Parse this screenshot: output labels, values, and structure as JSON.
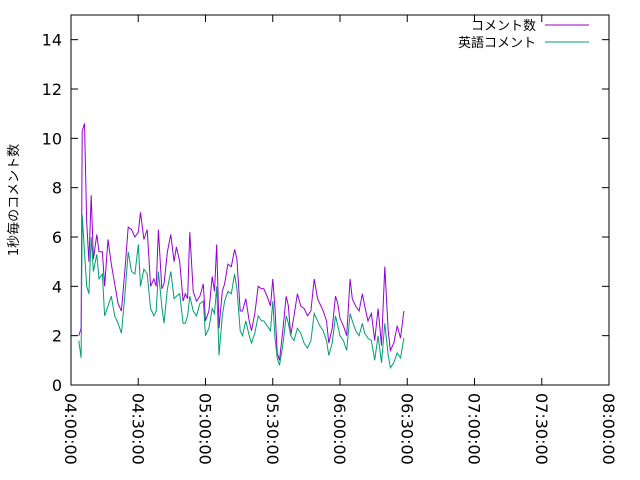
{
  "chart_data": {
    "type": "line",
    "title": "",
    "xlabel": "",
    "ylabel": "1秒毎のコメント数",
    "xlim": [
      "04:00:00",
      "08:00:00"
    ],
    "ylim": [
      0,
      15
    ],
    "x_ticks": [
      "04:00:00",
      "04:30:00",
      "05:00:00",
      "05:30:00",
      "06:00:00",
      "06:30:00",
      "07:00:00",
      "07:30:00",
      "08:00:00"
    ],
    "y_ticks": [
      0,
      2,
      4,
      6,
      8,
      10,
      12,
      14
    ],
    "legend_position": "top-right",
    "grid": false,
    "series": [
      {
        "name": "コメント数",
        "color": "#9400d3",
        "points": [
          [
            "04:03:30",
            2.0
          ],
          [
            "04:04:30",
            2.3
          ],
          [
            "04:05:00",
            10.3
          ],
          [
            "04:06:00",
            10.6
          ],
          [
            "04:07:00",
            6.6
          ],
          [
            "04:08:00",
            5.0
          ],
          [
            "04:09:00",
            7.7
          ],
          [
            "04:10:00",
            5.1
          ],
          [
            "04:11:30",
            6.1
          ],
          [
            "04:12:30",
            5.4
          ],
          [
            "04:14:00",
            5.4
          ],
          [
            "04:15:00",
            4.0
          ],
          [
            "04:16:30",
            5.9
          ],
          [
            "04:18:00",
            4.9
          ],
          [
            "04:19:30",
            4.1
          ],
          [
            "04:21:00",
            3.3
          ],
          [
            "04:22:30",
            3.0
          ],
          [
            "04:24:00",
            4.6
          ],
          [
            "04:25:30",
            6.4
          ],
          [
            "04:27:00",
            6.3
          ],
          [
            "04:28:30",
            6.0
          ],
          [
            "04:30:00",
            6.2
          ],
          [
            "04:31:00",
            7.0
          ],
          [
            "04:32:30",
            5.9
          ],
          [
            "04:34:00",
            6.3
          ],
          [
            "04:35:30",
            4.0
          ],
          [
            "04:37:00",
            4.3
          ],
          [
            "04:38:00",
            4.0
          ],
          [
            "04:39:00",
            6.3
          ],
          [
            "04:40:30",
            3.9
          ],
          [
            "04:41:30",
            4.1
          ],
          [
            "04:43:00",
            5.4
          ],
          [
            "04:44:30",
            6.1
          ],
          [
            "04:46:00",
            5.0
          ],
          [
            "04:47:00",
            5.6
          ],
          [
            "04:48:30",
            5.0
          ],
          [
            "04:50:00",
            3.4
          ],
          [
            "04:51:00",
            3.7
          ],
          [
            "04:52:00",
            3.5
          ],
          [
            "04:53:00",
            6.2
          ],
          [
            "04:54:30",
            3.8
          ],
          [
            "04:56:00",
            3.4
          ],
          [
            "04:57:30",
            3.6
          ],
          [
            "04:59:00",
            4.1
          ],
          [
            "05:00:00",
            2.6
          ],
          [
            "05:01:30",
            3.0
          ],
          [
            "05:03:00",
            4.4
          ],
          [
            "05:04:00",
            3.8
          ],
          [
            "05:05:00",
            5.7
          ],
          [
            "05:06:00",
            2.3
          ],
          [
            "05:07:30",
            3.8
          ],
          [
            "05:08:30",
            4.1
          ],
          [
            "05:10:00",
            4.9
          ],
          [
            "05:11:30",
            4.8
          ],
          [
            "05:13:00",
            5.5
          ],
          [
            "05:14:00",
            5.1
          ],
          [
            "05:15:30",
            3.0
          ],
          [
            "05:16:30",
            3.0
          ],
          [
            "05:18:00",
            3.5
          ],
          [
            "05:19:30",
            2.6
          ],
          [
            "05:20:30",
            2.2
          ],
          [
            "05:22:00",
            2.9
          ],
          [
            "05:23:30",
            4.0
          ],
          [
            "05:25:00",
            3.9
          ],
          [
            "05:26:00",
            3.9
          ],
          [
            "05:27:30",
            3.6
          ],
          [
            "05:29:00",
            3.2
          ],
          [
            "05:30:00",
            4.3
          ],
          [
            "05:31:00",
            3.1
          ],
          [
            "05:32:00",
            1.3
          ],
          [
            "05:33:00",
            1.0
          ],
          [
            "05:34:30",
            2.2
          ],
          [
            "05:36:00",
            3.6
          ],
          [
            "05:37:00",
            3.2
          ],
          [
            "05:38:00",
            2.0
          ],
          [
            "05:39:30",
            2.8
          ],
          [
            "05:41:00",
            3.7
          ],
          [
            "05:42:30",
            3.2
          ],
          [
            "05:44:00",
            3.1
          ],
          [
            "05:45:30",
            2.8
          ],
          [
            "05:47:00",
            3.0
          ],
          [
            "05:48:30",
            4.3
          ],
          [
            "05:50:00",
            3.5
          ],
          [
            "05:51:00",
            3.3
          ],
          [
            "05:52:30",
            3.0
          ],
          [
            "05:54:00",
            2.6
          ],
          [
            "05:55:00",
            1.7
          ],
          [
            "05:56:30",
            2.3
          ],
          [
            "05:58:00",
            3.6
          ],
          [
            "05:59:00",
            3.3
          ],
          [
            "06:00:00",
            2.7
          ],
          [
            "06:01:30",
            2.4
          ],
          [
            "06:03:00",
            2.0
          ],
          [
            "06:04:30",
            4.3
          ],
          [
            "06:05:30",
            3.5
          ],
          [
            "06:07:00",
            3.2
          ],
          [
            "06:08:30",
            3.0
          ],
          [
            "06:10:00",
            3.7
          ],
          [
            "06:11:00",
            3.2
          ],
          [
            "06:12:30",
            2.6
          ],
          [
            "06:14:00",
            2.9
          ],
          [
            "06:15:30",
            1.8
          ],
          [
            "06:17:00",
            3.1
          ],
          [
            "06:18:30",
            1.6
          ],
          [
            "06:20:00",
            4.8
          ],
          [
            "06:21:30",
            2.2
          ],
          [
            "06:22:30",
            1.4
          ],
          [
            "06:24:00",
            1.7
          ],
          [
            "06:25:30",
            2.4
          ],
          [
            "06:27:00",
            1.9
          ],
          [
            "06:28:30",
            3.0
          ]
        ]
      },
      {
        "name": "英語コメント",
        "color": "#009e73",
        "points": [
          [
            "04:03:30",
            1.8
          ],
          [
            "04:04:30",
            1.1
          ],
          [
            "04:05:00",
            6.9
          ],
          [
            "04:06:00",
            5.4
          ],
          [
            "04:07:00",
            4.0
          ],
          [
            "04:08:00",
            3.7
          ],
          [
            "04:09:00",
            6.0
          ],
          [
            "04:10:00",
            4.6
          ],
          [
            "04:11:30",
            5.3
          ],
          [
            "04:12:30",
            4.3
          ],
          [
            "04:14:00",
            4.5
          ],
          [
            "04:15:00",
            2.8
          ],
          [
            "04:16:30",
            3.2
          ],
          [
            "04:18:00",
            3.6
          ],
          [
            "04:19:30",
            2.8
          ],
          [
            "04:21:00",
            2.5
          ],
          [
            "04:22:30",
            2.1
          ],
          [
            "04:24:00",
            3.6
          ],
          [
            "04:25:30",
            5.4
          ],
          [
            "04:27:00",
            4.6
          ],
          [
            "04:28:30",
            4.5
          ],
          [
            "04:30:00",
            5.7
          ],
          [
            "04:31:00",
            4.0
          ],
          [
            "04:32:30",
            4.7
          ],
          [
            "04:34:00",
            4.5
          ],
          [
            "04:35:30",
            3.1
          ],
          [
            "04:37:00",
            2.8
          ],
          [
            "04:38:00",
            3.0
          ],
          [
            "04:39:00",
            4.6
          ],
          [
            "04:40:30",
            3.2
          ],
          [
            "04:41:30",
            2.5
          ],
          [
            "04:43:00",
            3.9
          ],
          [
            "04:44:30",
            4.6
          ],
          [
            "04:46:00",
            3.5
          ],
          [
            "04:47:00",
            3.6
          ],
          [
            "04:48:30",
            3.7
          ],
          [
            "04:50:00",
            2.5
          ],
          [
            "04:51:00",
            2.5
          ],
          [
            "04:52:00",
            2.8
          ],
          [
            "04:53:00",
            3.6
          ],
          [
            "04:54:30",
            3.0
          ],
          [
            "04:56:00",
            2.8
          ],
          [
            "04:57:30",
            3.3
          ],
          [
            "04:59:00",
            3.4
          ],
          [
            "05:00:00",
            2.0
          ],
          [
            "05:01:30",
            2.3
          ],
          [
            "05:03:00",
            3.1
          ],
          [
            "05:04:00",
            2.9
          ],
          [
            "05:05:00",
            4.0
          ],
          [
            "05:06:00",
            1.2
          ],
          [
            "05:07:30",
            2.8
          ],
          [
            "05:08:30",
            3.4
          ],
          [
            "05:10:00",
            3.8
          ],
          [
            "05:11:30",
            3.7
          ],
          [
            "05:13:00",
            4.5
          ],
          [
            "05:14:00",
            3.9
          ],
          [
            "05:15:30",
            2.2
          ],
          [
            "05:16:30",
            2.0
          ],
          [
            "05:18:00",
            2.6
          ],
          [
            "05:19:30",
            2.0
          ],
          [
            "05:20:30",
            1.7
          ],
          [
            "05:22:00",
            2.1
          ],
          [
            "05:23:30",
            2.8
          ],
          [
            "05:25:00",
            2.6
          ],
          [
            "05:26:00",
            2.6
          ],
          [
            "05:27:30",
            2.4
          ],
          [
            "05:29:00",
            2.2
          ],
          [
            "05:30:00",
            3.4
          ],
          [
            "05:31:00",
            1.9
          ],
          [
            "05:32:00",
            1.1
          ],
          [
            "05:33:00",
            0.8
          ],
          [
            "05:34:30",
            1.6
          ],
          [
            "05:36:00",
            2.8
          ],
          [
            "05:37:00",
            2.5
          ],
          [
            "05:38:00",
            2.0
          ],
          [
            "05:39:30",
            1.8
          ],
          [
            "05:41:00",
            2.3
          ],
          [
            "05:42:30",
            2.1
          ],
          [
            "05:44:00",
            1.7
          ],
          [
            "05:45:30",
            1.5
          ],
          [
            "05:47:00",
            1.8
          ],
          [
            "05:48:30",
            2.9
          ],
          [
            "05:50:00",
            2.6
          ],
          [
            "05:51:00",
            2.4
          ],
          [
            "05:52:30",
            2.2
          ],
          [
            "05:54:00",
            1.8
          ],
          [
            "05:55:00",
            1.2
          ],
          [
            "05:56:30",
            1.7
          ],
          [
            "05:58:00",
            2.8
          ],
          [
            "05:59:00",
            2.4
          ],
          [
            "06:00:00",
            2.0
          ],
          [
            "06:01:30",
            1.8
          ],
          [
            "06:03:00",
            1.4
          ],
          [
            "06:04:30",
            2.9
          ],
          [
            "06:05:30",
            2.6
          ],
          [
            "06:07:00",
            2.2
          ],
          [
            "06:08:30",
            2.0
          ],
          [
            "06:10:00",
            2.5
          ],
          [
            "06:11:00",
            2.1
          ],
          [
            "06:12:30",
            1.9
          ],
          [
            "06:14:00",
            1.8
          ],
          [
            "06:15:30",
            1.0
          ],
          [
            "06:17:00",
            2.0
          ],
          [
            "06:18:30",
            0.9
          ],
          [
            "06:20:00",
            2.5
          ],
          [
            "06:21:30",
            1.2
          ],
          [
            "06:22:30",
            0.7
          ],
          [
            "06:24:00",
            0.9
          ],
          [
            "06:25:30",
            1.3
          ],
          [
            "06:27:00",
            1.1
          ],
          [
            "06:28:30",
            1.9
          ]
        ]
      }
    ]
  }
}
